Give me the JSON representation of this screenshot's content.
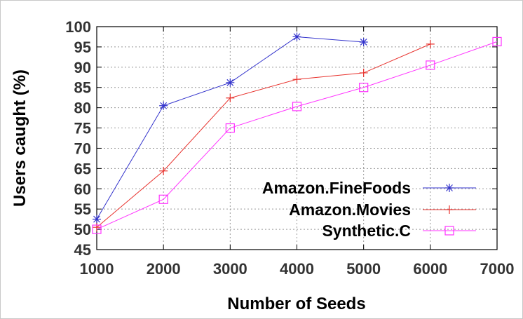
{
  "chart_data": {
    "type": "line",
    "xlabel": "Number of Seeds",
    "ylabel": "Users caught (%)",
    "x_ticks": [
      1000,
      2000,
      3000,
      4000,
      5000,
      6000,
      7000
    ],
    "y_ticks": [
      45,
      50,
      55,
      60,
      65,
      70,
      75,
      80,
      85,
      90,
      95,
      100
    ],
    "xlim": [
      1000,
      7000
    ],
    "ylim": [
      45,
      100
    ],
    "grid": true,
    "legend_position": "right",
    "series": [
      {
        "name": "Amazon.FineFoods",
        "color": "#3333cc",
        "marker": "asterisk",
        "x": [
          1000,
          2000,
          3000,
          4000,
          5000
        ],
        "y": [
          52.5,
          80.5,
          86.2,
          97.5,
          96.2
        ]
      },
      {
        "name": "Amazon.Movies",
        "color": "#e8322d",
        "marker": "plus",
        "x": [
          1000,
          2000,
          3000,
          4000,
          5000,
          6000
        ],
        "y": [
          50.5,
          64.4,
          82.4,
          87.0,
          88.6,
          95.7
        ]
      },
      {
        "name": "Synthetic.C",
        "color": "#ff33ff",
        "marker": "square",
        "x": [
          1000,
          2000,
          3000,
          4000,
          5000,
          6000,
          7000
        ],
        "y": [
          50.0,
          57.4,
          75.0,
          80.3,
          85.0,
          90.5,
          96.3
        ]
      }
    ]
  }
}
